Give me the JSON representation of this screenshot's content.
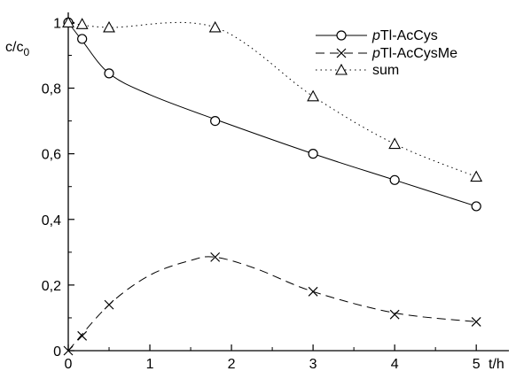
{
  "chart_data": {
    "type": "line",
    "ylabel_main": "c/c",
    "ylabel_sub": "0",
    "xlabel": "t/h",
    "xlim": [
      0,
      5.4
    ],
    "ylim": [
      0,
      1.02
    ],
    "grid": false,
    "legend_position": "top-right",
    "x_ticks": [
      {
        "value": 0,
        "label": "0"
      },
      {
        "value": 1,
        "label": "1"
      },
      {
        "value": 2,
        "label": "2"
      },
      {
        "value": 3,
        "label": "3"
      },
      {
        "value": 4,
        "label": "4"
      },
      {
        "value": 5,
        "label": "5"
      }
    ],
    "y_ticks": [
      {
        "value": 0,
        "label": "0"
      },
      {
        "value": 0.2,
        "label": "0,2"
      },
      {
        "value": 0.4,
        "label": "0,4"
      },
      {
        "value": 0.6,
        "label": "0,6"
      },
      {
        "value": 0.8,
        "label": "0,8"
      },
      {
        "value": 1,
        "label": "1"
      }
    ],
    "series": [
      {
        "key": "acys",
        "name_italic": "p",
        "name_rest": "Tl-AcCys",
        "marker": "circle",
        "line_style": "solid",
        "points": [
          [
            0,
            1.0
          ],
          [
            0.17,
            0.95
          ],
          [
            0.5,
            0.845
          ],
          [
            1.8,
            0.7
          ],
          [
            3,
            0.6
          ],
          [
            4,
            0.52
          ],
          [
            5,
            0.44
          ]
        ],
        "curve": [
          [
            0,
            1.0
          ],
          [
            0.17,
            0.945
          ],
          [
            0.5,
            0.845
          ],
          [
            1.0,
            0.78
          ],
          [
            1.8,
            0.705
          ],
          [
            3,
            0.6
          ],
          [
            4,
            0.52
          ],
          [
            5,
            0.44
          ]
        ]
      },
      {
        "key": "acysme",
        "name_italic": "p",
        "name_rest": "Tl-AcCysMe",
        "marker": "cross",
        "line_style": "dashed",
        "points": [
          [
            0,
            0.0
          ],
          [
            0.17,
            0.045
          ],
          [
            0.5,
            0.14
          ],
          [
            1.8,
            0.285
          ],
          [
            3,
            0.18
          ],
          [
            4,
            0.11
          ],
          [
            5,
            0.088
          ]
        ],
        "curve": [
          [
            0,
            0.0
          ],
          [
            0.5,
            0.14
          ],
          [
            1.0,
            0.23
          ],
          [
            1.5,
            0.275
          ],
          [
            1.8,
            0.285
          ],
          [
            2.3,
            0.25
          ],
          [
            3,
            0.18
          ],
          [
            4,
            0.115
          ],
          [
            5,
            0.088
          ]
        ]
      },
      {
        "key": "sum",
        "name_italic": "",
        "name_rest": "sum",
        "marker": "triangle",
        "line_style": "dotted",
        "points": [
          [
            0,
            1.0
          ],
          [
            0.17,
            0.995
          ],
          [
            0.5,
            0.985
          ],
          [
            1.8,
            0.985
          ],
          [
            3,
            0.775
          ],
          [
            4,
            0.63
          ],
          [
            5,
            0.53
          ]
        ],
        "curve": [
          [
            0,
            1.0
          ],
          [
            0.5,
            0.985
          ],
          [
            1.8,
            0.985
          ],
          [
            3,
            0.775
          ],
          [
            4,
            0.63
          ],
          [
            5,
            0.53
          ]
        ]
      }
    ]
  }
}
